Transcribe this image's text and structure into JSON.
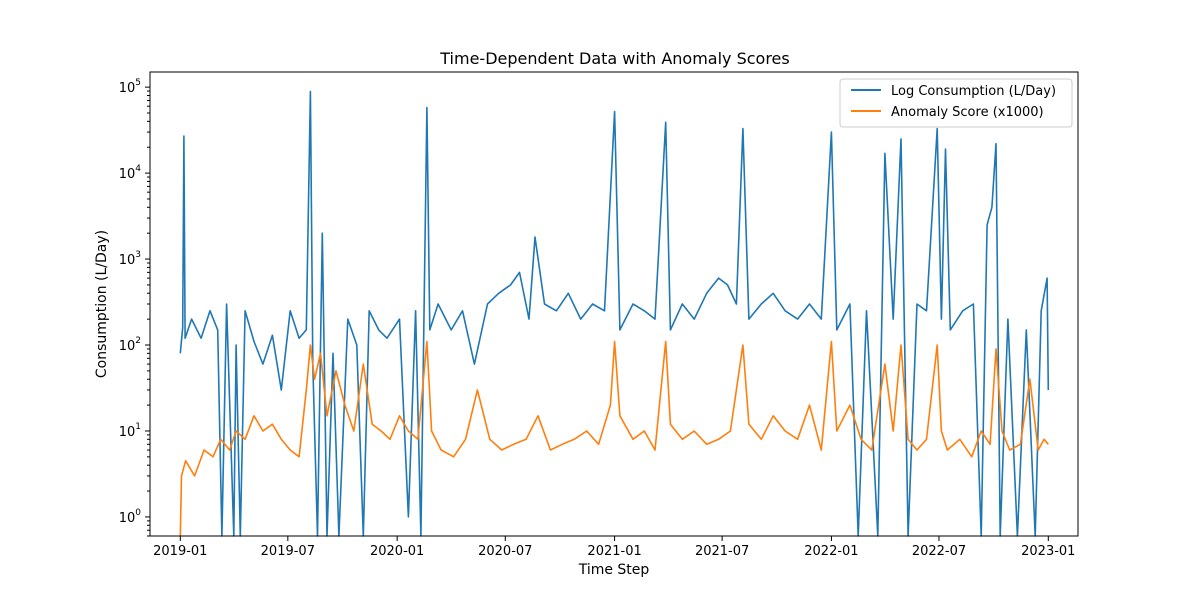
{
  "chart_data": {
    "type": "line",
    "title": "Time-Dependent Data with Anomaly Scores",
    "xlabel": "Time Step",
    "ylabel": "Consumption (L/Day)",
    "yscale": "log",
    "x_range": [
      "2018-11-11",
      "2023-02-20"
    ],
    "ylim": [
      0.6,
      150000
    ],
    "x_ticks": [
      "2019-01",
      "2019-07",
      "2020-01",
      "2020-07",
      "2021-01",
      "2021-07",
      "2022-01",
      "2022-07",
      "2023-01"
    ],
    "y_ticks": [
      1,
      10,
      100,
      1000,
      10000,
      100000
    ],
    "y_tick_labels": [
      {
        "base": "10",
        "exp": "0"
      },
      {
        "base": "10",
        "exp": "1"
      },
      {
        "base": "10",
        "exp": "2"
      },
      {
        "base": "10",
        "exp": "3"
      },
      {
        "base": "10",
        "exp": "4"
      },
      {
        "base": "10",
        "exp": "5"
      }
    ],
    "grid": false,
    "legend_position": "upper-right",
    "series": [
      {
        "name": "Log Consumption (L/Day)",
        "color": "#1f77b4",
        "points": [
          [
            "2019-01-01",
            80
          ],
          [
            "2019-01-05",
            160
          ],
          [
            "2019-01-07",
            27000
          ],
          [
            "2019-01-09",
            120
          ],
          [
            "2019-01-20",
            200
          ],
          [
            "2019-02-05",
            120
          ],
          [
            "2019-02-20",
            250
          ],
          [
            "2019-03-05",
            150
          ],
          [
            "2019-03-12",
            0.5
          ],
          [
            "2019-03-20",
            300
          ],
          [
            "2019-04-01",
            0.5
          ],
          [
            "2019-04-05",
            100
          ],
          [
            "2019-04-12",
            0.5
          ],
          [
            "2019-04-20",
            250
          ],
          [
            "2019-05-05",
            110
          ],
          [
            "2019-05-20",
            60
          ],
          [
            "2019-06-05",
            130
          ],
          [
            "2019-06-20",
            30
          ],
          [
            "2019-07-05",
            250
          ],
          [
            "2019-07-20",
            120
          ],
          [
            "2019-08-01",
            150
          ],
          [
            "2019-08-08",
            89000
          ],
          [
            "2019-08-12",
            60
          ],
          [
            "2019-08-20",
            0.5
          ],
          [
            "2019-08-28",
            2000
          ],
          [
            "2019-09-05",
            0.5
          ],
          [
            "2019-09-15",
            80
          ],
          [
            "2019-09-25",
            0.5
          ],
          [
            "2019-10-10",
            200
          ],
          [
            "2019-10-25",
            100
          ],
          [
            "2019-11-05",
            0.5
          ],
          [
            "2019-11-15",
            250
          ],
          [
            "2019-12-01",
            150
          ],
          [
            "2019-12-15",
            120
          ],
          [
            "2020-01-05",
            200
          ],
          [
            "2020-01-20",
            1
          ],
          [
            "2020-02-01",
            250
          ],
          [
            "2020-02-10",
            0.5
          ],
          [
            "2020-02-20",
            58000
          ],
          [
            "2020-02-25",
            150
          ],
          [
            "2020-03-10",
            300
          ],
          [
            "2020-04-01",
            150
          ],
          [
            "2020-04-20",
            250
          ],
          [
            "2020-05-10",
            60
          ],
          [
            "2020-06-01",
            300
          ],
          [
            "2020-06-20",
            400
          ],
          [
            "2020-07-10",
            500
          ],
          [
            "2020-07-25",
            700
          ],
          [
            "2020-08-10",
            200
          ],
          [
            "2020-08-20",
            1800
          ],
          [
            "2020-09-05",
            300
          ],
          [
            "2020-09-25",
            250
          ],
          [
            "2020-10-15",
            400
          ],
          [
            "2020-11-05",
            200
          ],
          [
            "2020-11-25",
            300
          ],
          [
            "2020-12-15",
            250
          ],
          [
            "2021-01-01",
            52000
          ],
          [
            "2021-01-10",
            150
          ],
          [
            "2021-02-01",
            300
          ],
          [
            "2021-02-20",
            250
          ],
          [
            "2021-03-10",
            200
          ],
          [
            "2021-03-28",
            39000
          ],
          [
            "2021-04-05",
            150
          ],
          [
            "2021-04-25",
            300
          ],
          [
            "2021-05-15",
            200
          ],
          [
            "2021-06-05",
            400
          ],
          [
            "2021-06-25",
            600
          ],
          [
            "2021-07-10",
            500
          ],
          [
            "2021-07-25",
            300
          ],
          [
            "2021-08-05",
            33000
          ],
          [
            "2021-08-15",
            200
          ],
          [
            "2021-09-05",
            300
          ],
          [
            "2021-09-25",
            400
          ],
          [
            "2021-10-15",
            250
          ],
          [
            "2021-11-05",
            200
          ],
          [
            "2021-11-25",
            300
          ],
          [
            "2021-12-15",
            200
          ],
          [
            "2022-01-01",
            30000
          ],
          [
            "2022-01-10",
            150
          ],
          [
            "2022-02-01",
            300
          ],
          [
            "2022-02-15",
            0.5
          ],
          [
            "2022-03-01",
            250
          ],
          [
            "2022-03-20",
            0.5
          ],
          [
            "2022-04-01",
            17000
          ],
          [
            "2022-04-15",
            200
          ],
          [
            "2022-04-28",
            25000
          ],
          [
            "2022-05-10",
            0.5
          ],
          [
            "2022-05-25",
            300
          ],
          [
            "2022-06-10",
            250
          ],
          [
            "2022-06-28",
            33000
          ],
          [
            "2022-07-05",
            200
          ],
          [
            "2022-07-12",
            19000
          ],
          [
            "2022-07-20",
            150
          ],
          [
            "2022-08-10",
            250
          ],
          [
            "2022-08-28",
            300
          ],
          [
            "2022-09-10",
            0.5
          ],
          [
            "2022-09-20",
            2500
          ],
          [
            "2022-09-28",
            4000
          ],
          [
            "2022-10-05",
            22000
          ],
          [
            "2022-10-12",
            0.5
          ],
          [
            "2022-10-25",
            200
          ],
          [
            "2022-11-10",
            0.5
          ],
          [
            "2022-11-25",
            150
          ],
          [
            "2022-12-10",
            0.5
          ],
          [
            "2022-12-20",
            250
          ],
          [
            "2022-12-30",
            600
          ],
          [
            "2023-01-01",
            30
          ]
        ]
      },
      {
        "name": "Anomaly Score (x1000)",
        "color": "#ff7f0e",
        "points": [
          [
            "2019-01-01",
            0.5
          ],
          [
            "2019-01-03",
            3
          ],
          [
            "2019-01-10",
            4.5
          ],
          [
            "2019-01-25",
            3
          ],
          [
            "2019-02-10",
            6
          ],
          [
            "2019-02-25",
            5
          ],
          [
            "2019-03-10",
            8
          ],
          [
            "2019-03-25",
            6
          ],
          [
            "2019-04-05",
            10
          ],
          [
            "2019-04-20",
            8
          ],
          [
            "2019-05-05",
            15
          ],
          [
            "2019-05-20",
            10
          ],
          [
            "2019-06-05",
            12
          ],
          [
            "2019-06-20",
            8
          ],
          [
            "2019-07-05",
            6
          ],
          [
            "2019-07-20",
            5
          ],
          [
            "2019-08-01",
            30
          ],
          [
            "2019-08-08",
            100
          ],
          [
            "2019-08-15",
            40
          ],
          [
            "2019-08-25",
            80
          ],
          [
            "2019-09-05",
            15
          ],
          [
            "2019-09-20",
            50
          ],
          [
            "2019-10-05",
            20
          ],
          [
            "2019-10-20",
            10
          ],
          [
            "2019-11-05",
            60
          ],
          [
            "2019-11-20",
            12
          ],
          [
            "2019-12-05",
            10
          ],
          [
            "2019-12-20",
            8
          ],
          [
            "2020-01-05",
            15
          ],
          [
            "2020-01-20",
            10
          ],
          [
            "2020-02-05",
            8
          ],
          [
            "2020-02-20",
            110
          ],
          [
            "2020-02-28",
            10
          ],
          [
            "2020-03-15",
            6
          ],
          [
            "2020-04-05",
            5
          ],
          [
            "2020-04-25",
            8
          ],
          [
            "2020-05-15",
            30
          ],
          [
            "2020-06-05",
            8
          ],
          [
            "2020-06-25",
            6
          ],
          [
            "2020-07-15",
            7
          ],
          [
            "2020-08-05",
            8
          ],
          [
            "2020-08-25",
            15
          ],
          [
            "2020-09-15",
            6
          ],
          [
            "2020-10-05",
            7
          ],
          [
            "2020-10-25",
            8
          ],
          [
            "2020-11-15",
            10
          ],
          [
            "2020-12-05",
            7
          ],
          [
            "2020-12-25",
            20
          ],
          [
            "2021-01-01",
            110
          ],
          [
            "2021-01-10",
            15
          ],
          [
            "2021-02-01",
            8
          ],
          [
            "2021-02-20",
            10
          ],
          [
            "2021-03-10",
            6
          ],
          [
            "2021-03-28",
            110
          ],
          [
            "2021-04-05",
            12
          ],
          [
            "2021-04-25",
            8
          ],
          [
            "2021-05-15",
            10
          ],
          [
            "2021-06-05",
            7
          ],
          [
            "2021-06-25",
            8
          ],
          [
            "2021-07-15",
            10
          ],
          [
            "2021-08-05",
            100
          ],
          [
            "2021-08-15",
            12
          ],
          [
            "2021-09-05",
            8
          ],
          [
            "2021-09-25",
            15
          ],
          [
            "2021-10-15",
            10
          ],
          [
            "2021-11-05",
            8
          ],
          [
            "2021-11-25",
            20
          ],
          [
            "2021-12-15",
            6
          ],
          [
            "2022-01-01",
            110
          ],
          [
            "2022-01-10",
            10
          ],
          [
            "2022-02-01",
            20
          ],
          [
            "2022-02-20",
            8
          ],
          [
            "2022-03-10",
            6
          ],
          [
            "2022-04-01",
            60
          ],
          [
            "2022-04-15",
            10
          ],
          [
            "2022-04-28",
            100
          ],
          [
            "2022-05-10",
            8
          ],
          [
            "2022-05-25",
            6
          ],
          [
            "2022-06-10",
            8
          ],
          [
            "2022-06-28",
            100
          ],
          [
            "2022-07-05",
            10
          ],
          [
            "2022-07-15",
            6
          ],
          [
            "2022-08-05",
            8
          ],
          [
            "2022-08-25",
            5
          ],
          [
            "2022-09-10",
            10
          ],
          [
            "2022-09-25",
            7
          ],
          [
            "2022-10-05",
            90
          ],
          [
            "2022-10-15",
            10
          ],
          [
            "2022-10-28",
            6
          ],
          [
            "2022-11-15",
            7
          ],
          [
            "2022-12-01",
            40
          ],
          [
            "2022-12-15",
            6
          ],
          [
            "2022-12-25",
            8
          ],
          [
            "2023-01-01",
            7
          ]
        ]
      }
    ]
  }
}
